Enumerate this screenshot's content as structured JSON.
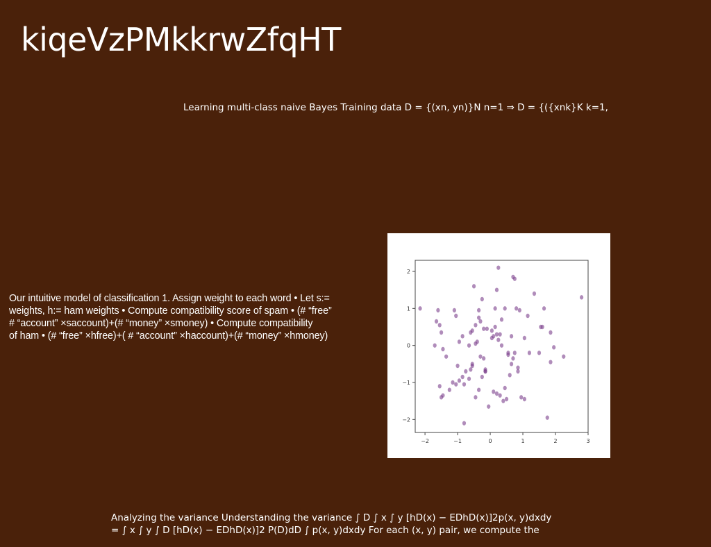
{
  "slide": {
    "title": "kiqeVzPMkkrwZfqHT",
    "subtitle": "Learning multi-class naive Bayes Training data D = {(xn, yn)}N n=1 ⇒ D = {({xnk}K k=1,",
    "body_lines": [
      "Our intuitive model of classification 1. Assign weight to each word • Let s:=",
      "weights, h:= ham weights • Compute compatibility score of spam • (# “free”",
      "# “account” ×saccount)+(# “money” ×smoney) • Compute compatibility",
      "of ham • (# “free” ×hfree)+( # “account” ×haccount)+(# “money” ×hmoney)"
    ],
    "footer_lines": [
      "Analyzing the variance Understanding the variance ∫ D ∫ x ∫ y [hD(x) − EDhD(x)]2p(x, y)dxdy",
      "= ∫ x ∫ y ∫ D [hD(x) − EDhD(x)]2 P(D)dD ∫ p(x, y)dxdy For each (x, y) pair, we compute the"
    ]
  },
  "colors": {
    "background": "#4a210a",
    "text": "#ffffff",
    "point": "#7b3f8c"
  },
  "chart_data": {
    "type": "scatter",
    "title": "",
    "xlabel": "",
    "ylabel": "",
    "xlim": [
      -2.3,
      3.0
    ],
    "ylim": [
      -2.35,
      2.3
    ],
    "xticks": [
      -2,
      -1,
      0,
      1,
      2,
      3
    ],
    "yticks": [
      -2,
      -1,
      0,
      1,
      2
    ],
    "grid": false,
    "series": [
      {
        "x": [
          -2.15,
          -1.6,
          -1.55,
          -1.5,
          -1.45,
          -1.65,
          -1.7,
          -1.35,
          -1.05,
          -1.1,
          -0.95,
          -0.85,
          -0.65,
          -0.6,
          -0.5,
          -0.45,
          -0.35,
          -0.3,
          -0.2,
          -0.1,
          0.05,
          0.15,
          0.2,
          0.25,
          0.35,
          0.45,
          0.55,
          0.7,
          0.8,
          0.9,
          1.05,
          1.15,
          1.35,
          1.55,
          1.65,
          1.85,
          1.95,
          2.25,
          2.8,
          -1.55,
          -1.5,
          -1.45,
          -1.25,
          -1.15,
          -1.05,
          -0.95,
          -0.85,
          -0.75,
          -0.65,
          -0.55,
          -0.45,
          -0.35,
          -0.25,
          -0.15,
          -0.05,
          0.1,
          0.2,
          0.3,
          0.4,
          0.5,
          0.6,
          0.75,
          0.85,
          0.95,
          1.05,
          1.2,
          1.5,
          1.75,
          1.85,
          -0.8,
          -0.55,
          -0.45,
          -0.4,
          -0.3,
          -0.2,
          -0.15,
          0.05,
          0.15,
          0.25,
          -0.55,
          -0.35,
          -0.25,
          0.1,
          0.3,
          0.65,
          -0.6,
          -0.15,
          0.45,
          0.7,
          1.6,
          0.2,
          0.35,
          -1.0,
          -0.8,
          0.65,
          0.75,
          0.55,
          0.85
        ],
        "y": [
          1.0,
          0.95,
          0.55,
          0.35,
          -0.1,
          0.65,
          0.0,
          -0.3,
          0.8,
          0.95,
          0.1,
          0.25,
          0.0,
          0.35,
          1.6,
          0.55,
          0.95,
          0.65,
          0.45,
          0.45,
          0.4,
          1.0,
          0.3,
          2.1,
          0.7,
          1.0,
          -0.2,
          1.85,
          1.0,
          0.95,
          0.2,
          0.8,
          1.4,
          0.5,
          1.0,
          0.35,
          -0.05,
          -0.3,
          1.3,
          -1.1,
          -1.4,
          -1.35,
          -1.2,
          -1.0,
          -1.05,
          -0.95,
          -0.85,
          -0.7,
          -0.9,
          -0.55,
          -1.4,
          -1.2,
          -0.85,
          -0.7,
          -1.65,
          -1.25,
          -1.3,
          -1.35,
          -1.5,
          -1.45,
          -0.8,
          -0.2,
          -0.6,
          -1.4,
          -1.45,
          -0.2,
          -0.2,
          -1.95,
          -0.45,
          -2.1,
          -0.5,
          0.05,
          0.1,
          -0.3,
          -0.35,
          -0.65,
          0.2,
          0.5,
          0.15,
          0.4,
          0.75,
          1.25,
          0.25,
          0.3,
          -0.5,
          -0.65,
          -0.7,
          -1.15,
          -0.35,
          0.5,
          1.5,
          0.0,
          -0.55,
          -1.05,
          0.25,
          1.8,
          -0.25,
          -0.7
        ]
      }
    ]
  }
}
